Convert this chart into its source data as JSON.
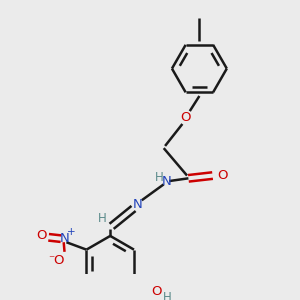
{
  "background_color": "#ebebeb",
  "bond_color": "#1a1a1a",
  "atom_colors": {
    "O": "#cc0000",
    "N": "#2244bb",
    "C": "#1a1a1a",
    "H": "#5a8a8a"
  },
  "figsize": [
    3.0,
    3.0
  ],
  "dpi": 100
}
